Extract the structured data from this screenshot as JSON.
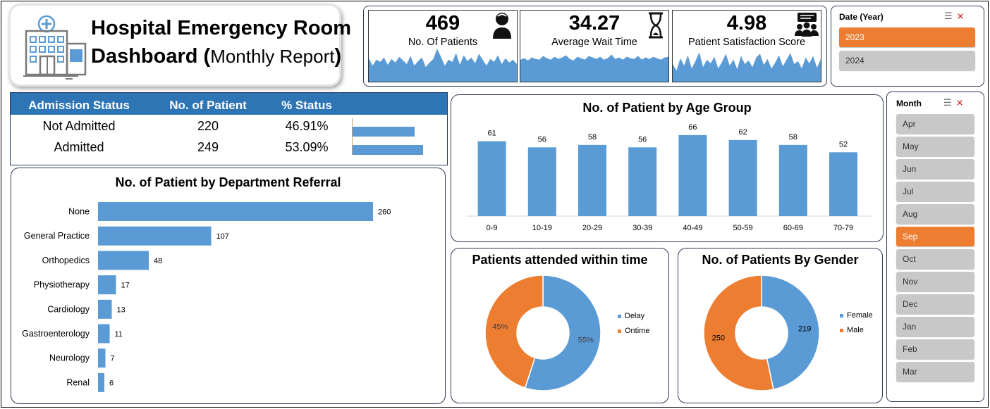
{
  "header": {
    "title_line1": "Hospital Emergency Room",
    "title_line2_bold": "Dashboard (",
    "title_line2_light": "Monthly Report",
    "title_line2_end": ")"
  },
  "kpis": [
    {
      "value": "469",
      "label": "No. Of Patients",
      "icon": "patient-icon",
      "spark": [
        32,
        22,
        30,
        27,
        33,
        23,
        31,
        26,
        34,
        29,
        24,
        35,
        22,
        28,
        33,
        20,
        26,
        31,
        45,
        34,
        22,
        30,
        27,
        39,
        23,
        36,
        28,
        33,
        25,
        38,
        30,
        22,
        31,
        27,
        36,
        24,
        32,
        26,
        30,
        24
      ]
    },
    {
      "value": "34.27",
      "label": "Average Wait Time",
      "icon": "hourglass-icon",
      "spark": [
        30,
        32,
        29,
        33,
        31,
        30,
        35,
        32,
        30,
        34,
        31,
        33,
        36,
        31,
        29,
        34,
        32,
        30,
        35,
        33,
        31,
        34,
        30,
        32,
        37,
        31,
        33,
        30,
        34,
        32,
        31,
        35,
        30,
        33,
        31,
        34,
        32,
        30,
        33,
        34
      ]
    },
    {
      "value": "4.98",
      "label": "Patient Satisfaction Score",
      "icon": "feedback-icon",
      "spark": [
        24,
        15,
        32,
        22,
        36,
        18,
        28,
        40,
        20,
        30,
        25,
        34,
        18,
        27,
        38,
        22,
        30,
        17,
        35,
        24,
        29,
        20,
        33,
        38,
        23,
        31,
        18,
        26,
        36,
        21,
        30,
        39,
        24,
        28,
        18,
        33,
        25,
        35,
        19,
        31
      ]
    }
  ],
  "year_slicer": {
    "title": "Date (Year)",
    "items": [
      "2023",
      "2024"
    ],
    "selected": "2023"
  },
  "month_slicer": {
    "title": "Month",
    "items": [
      "Apr",
      "May",
      "Jun",
      "Jul",
      "Aug",
      "Sep",
      "Oct",
      "Nov",
      "Dec",
      "Jan",
      "Feb",
      "Mar"
    ],
    "selected": "Sep"
  },
  "admission": {
    "headers": [
      "Admission Status",
      "No. of Patient",
      "% Status"
    ],
    "rows": [
      {
        "status": "Not Admitted",
        "count": "220",
        "pct": "46.91%",
        "share": 0.4691
      },
      {
        "status": "Admitted",
        "count": "249",
        "pct": "53.09%",
        "share": 0.5309
      }
    ]
  },
  "colors": {
    "blue": "#5b9bd5",
    "orange": "#ed7d31",
    "header_blue": "#2e75b6",
    "selected": "#ed7d31"
  },
  "chart_data": [
    {
      "type": "bar",
      "orientation": "horizontal",
      "title": "No. of Patient by Department Referral",
      "categories": [
        "None",
        "General Practice",
        "Orthopedics",
        "Physiotherapy",
        "Cardiology",
        "Gastroenterology",
        "Neurology",
        "Renal"
      ],
      "values": [
        260,
        107,
        48,
        17,
        13,
        11,
        7,
        6
      ],
      "xlim": [
        0,
        300
      ]
    },
    {
      "type": "bar",
      "title": "No. of Patient by Age Group",
      "categories": [
        "0-9",
        "10-19",
        "20-29",
        "30-39",
        "40-49",
        "50-59",
        "60-69",
        "70-79"
      ],
      "values": [
        61,
        56,
        58,
        56,
        66,
        62,
        58,
        52
      ],
      "ylim": [
        0,
        75
      ]
    },
    {
      "type": "pie",
      "donut": true,
      "title": "Patients attended within time",
      "labels": [
        "Delay",
        "Ontime"
      ],
      "values": [
        55,
        45
      ],
      "value_labels": [
        "55%",
        "45%"
      ],
      "legend": "right"
    },
    {
      "type": "pie",
      "donut": true,
      "title": "No. of Patients By Gender",
      "labels": [
        "Female",
        "Male"
      ],
      "values": [
        219,
        250
      ],
      "value_labels": [
        "219",
        "250"
      ],
      "legend": "right"
    }
  ]
}
